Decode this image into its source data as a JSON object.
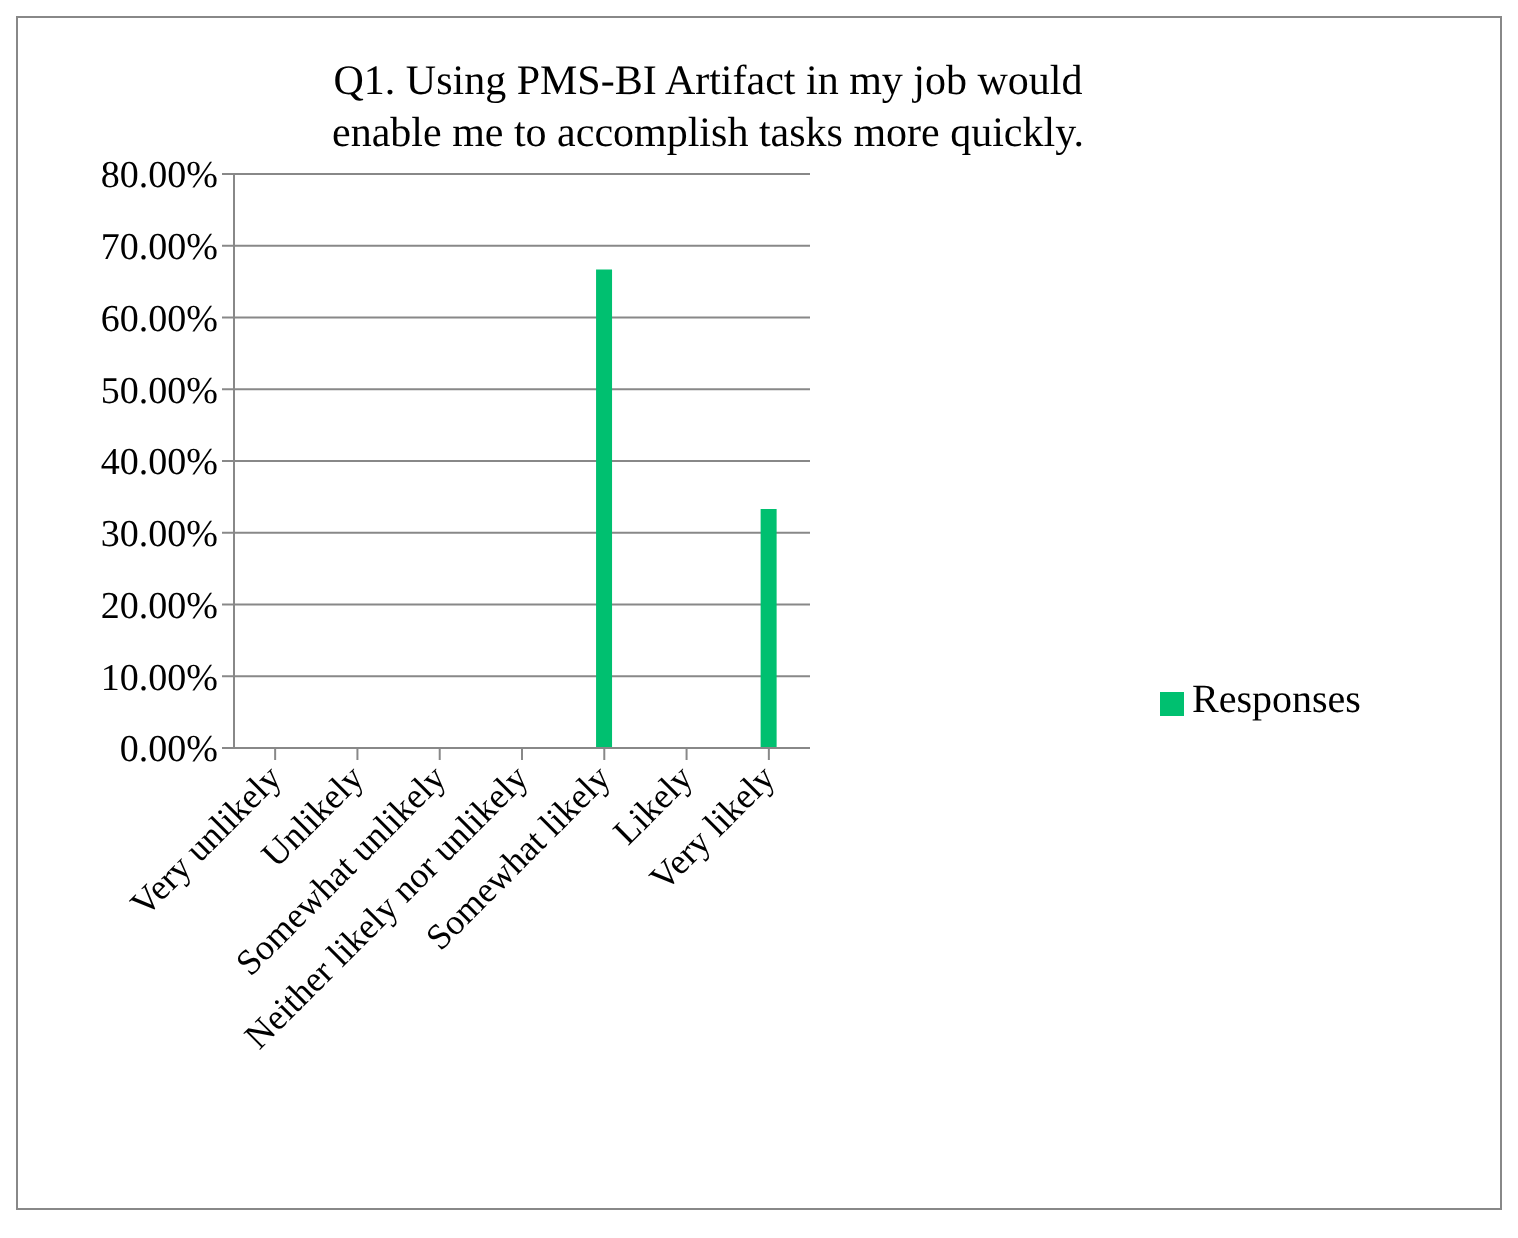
{
  "chart_data": {
    "type": "bar",
    "title": "Q1. Using PMS-BI Artifact in my job would enable me to accomplish tasks more quickly.",
    "categories": [
      "Very unlikely",
      "Unlikely",
      "Somewhat unlikely",
      "Neither likely nor unlikely",
      "Somewhat likely",
      "Likely",
      "Very likely"
    ],
    "series": [
      {
        "name": "Responses",
        "color": "#00c070",
        "values": [
          0,
          0,
          0,
          0,
          66.7,
          0,
          33.3
        ]
      }
    ],
    "ylim": [
      0,
      80
    ],
    "yticks": [
      {
        "value": 0,
        "label": "0.00%"
      },
      {
        "value": 10,
        "label": "10.00%"
      },
      {
        "value": 20,
        "label": "20.00%"
      },
      {
        "value": 30,
        "label": "30.00%"
      },
      {
        "value": 40,
        "label": "40.00%"
      },
      {
        "value": 50,
        "label": "50.00%"
      },
      {
        "value": 60,
        "label": "60.00%"
      },
      {
        "value": 70,
        "label": "70.00%"
      },
      {
        "value": 80,
        "label": "80.00%"
      }
    ],
    "grid": "y",
    "legend": "right"
  }
}
